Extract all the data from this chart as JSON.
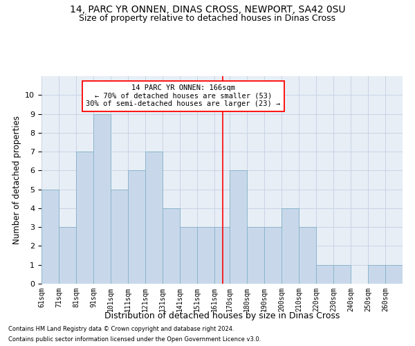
{
  "title": "14, PARC YR ONNEN, DINAS CROSS, NEWPORT, SA42 0SU",
  "subtitle": "Size of property relative to detached houses in Dinas Cross",
  "xlabel": "Distribution of detached houses by size in Dinas Cross",
  "ylabel": "Number of detached properties",
  "footnote1": "Contains HM Land Registry data © Crown copyright and database right 2024.",
  "footnote2": "Contains public sector information licensed under the Open Government Licence v3.0.",
  "annotation_line1": "14 PARC YR ONNEN: 166sqm",
  "annotation_line2": "← 70% of detached houses are smaller (53)",
  "annotation_line3": "30% of semi-detached houses are larger (23) →",
  "bar_left_edges": [
    61,
    71,
    81,
    91,
    101,
    111,
    121,
    131,
    141,
    151,
    161,
    170,
    180,
    190,
    200,
    210,
    220,
    230,
    240,
    250,
    260
  ],
  "bar_widths": [
    10,
    10,
    10,
    10,
    10,
    10,
    10,
    10,
    10,
    10,
    9,
    10,
    10,
    10,
    10,
    10,
    10,
    10,
    10,
    10,
    10
  ],
  "bar_heights": [
    5,
    3,
    7,
    9,
    5,
    6,
    7,
    4,
    3,
    3,
    3,
    6,
    3,
    3,
    4,
    3,
    1,
    1,
    0,
    1,
    1
  ],
  "bar_color": "#c8d8ea",
  "bar_edgecolor": "#8ab4cc",
  "red_line_x": 166,
  "ylim": [
    0,
    11
  ],
  "yticks": [
    0,
    1,
    2,
    3,
    4,
    5,
    6,
    7,
    8,
    9,
    10,
    11
  ],
  "grid_color": "#c8d4e4",
  "background_color": "#e8eef6",
  "title_fontsize": 10,
  "subtitle_fontsize": 9,
  "tick_labels": [
    "61sqm",
    "71sqm",
    "81sqm",
    "91sqm",
    "101sqm",
    "111sqm",
    "121sqm",
    "131sqm",
    "141sqm",
    "151sqm",
    "161sqm",
    "170sqm",
    "180sqm",
    "190sqm",
    "200sqm",
    "210sqm",
    "220sqm",
    "230sqm",
    "240sqm",
    "250sqm",
    "260sqm"
  ]
}
